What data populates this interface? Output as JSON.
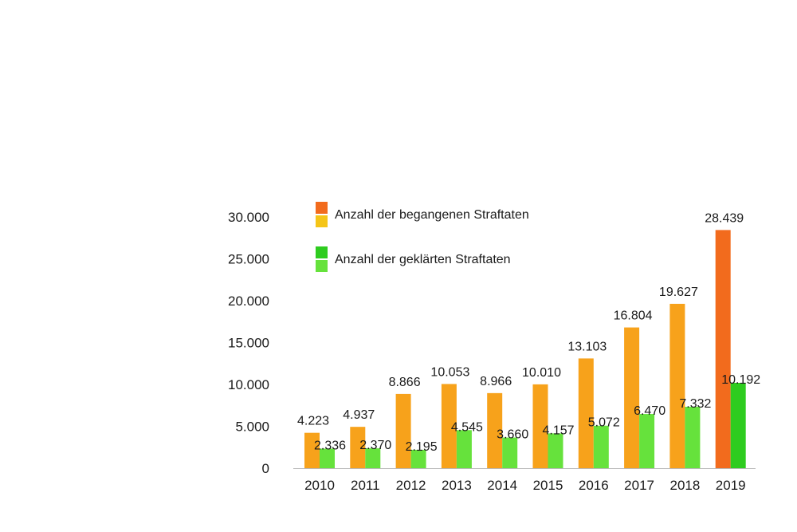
{
  "chart_data": {
    "type": "bar",
    "categories": [
      "2010",
      "2011",
      "2012",
      "2013",
      "2014",
      "2015",
      "2016",
      "2017",
      "2018",
      "2019"
    ],
    "series": [
      {
        "name": "Anzahl der begangenen Straftaten",
        "values": [
          4223,
          4937,
          8866,
          10053,
          8966,
          10010,
          13103,
          16804,
          19627,
          28439
        ],
        "labels": [
          "4.223",
          "4.937",
          "8.866",
          "10.053",
          "8.966",
          "10.010",
          "13.103",
          "16.804",
          "19.627",
          "28.439"
        ],
        "color": "#f7a21b",
        "highlight_color": "#f26b1d",
        "highlight_index": 9,
        "legend_swatches": [
          "#f26b1d",
          "#f5c518"
        ]
      },
      {
        "name": "Anzahl der geklärten Straftaten",
        "values": [
          2336,
          2370,
          2195,
          4545,
          3660,
          4157,
          5072,
          6470,
          7332,
          10192
        ],
        "labels": [
          "2.336",
          "2.370",
          "2.195",
          "4.545",
          "3.660",
          "4.157",
          "5.072",
          "6.470",
          "7.332",
          "10.192"
        ],
        "color": "#66e23c",
        "highlight_color": "#2ecc1f",
        "highlight_index": 9,
        "legend_swatches": [
          "#2ecc1f",
          "#66e23c"
        ]
      }
    ],
    "y_ticks": [
      "0",
      "5.000",
      "10.000",
      "15.000",
      "20.000",
      "25.000",
      "30.000"
    ],
    "y_tick_values": [
      0,
      5000,
      10000,
      15000,
      20000,
      25000,
      30000
    ],
    "ylim": [
      0,
      30000
    ],
    "grid": false,
    "legend_position": "top",
    "title": "",
    "xlabel": "",
    "ylabel": ""
  }
}
